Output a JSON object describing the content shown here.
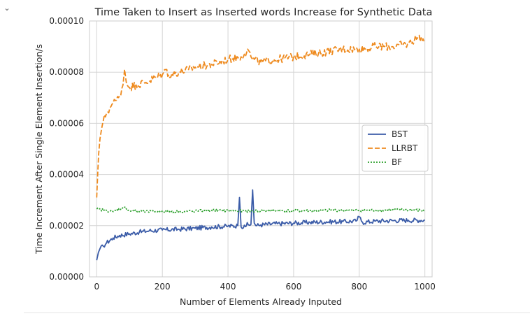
{
  "ui": {
    "collapse_icon": "chevron-down-icon"
  },
  "chart_data": {
    "type": "line",
    "title": "Time Taken to Insert as Inserted words Increase for Synthetic Data",
    "xlabel": "Number of Elements Already Inputed",
    "ylabel": "Time Increment After Single Element Insertion/s",
    "xlim": [
      -22,
      1022
    ],
    "ylim": [
      0,
      0.0001
    ],
    "xticks": [
      0,
      200,
      400,
      600,
      800,
      1000
    ],
    "xtick_labels": [
      "0",
      "200",
      "400",
      "600",
      "800",
      "1000"
    ],
    "yticks": [
      0,
      2e-05,
      4e-05,
      6e-05,
      8e-05,
      0.0001
    ],
    "ytick_labels": [
      "0.00000",
      "0.00002",
      "0.00004",
      "0.00006",
      "0.00008",
      "0.00010"
    ],
    "grid": true,
    "legend_position": "center-right",
    "series": [
      {
        "name": "BST",
        "color": "#3b5ca8",
        "dash": "solid",
        "x": [
          0,
          5,
          10,
          20,
          30,
          50,
          70,
          100,
          130,
          160,
          200,
          250,
          300,
          350,
          400,
          430,
          435,
          440,
          450,
          470,
          475,
          480,
          485,
          500,
          550,
          600,
          650,
          700,
          750,
          790,
          800,
          810,
          850,
          900,
          950,
          1000
        ],
        "y": [
          6.5e-06,
          9.5e-06,
          1.1e-05,
          1.2e-05,
          1.33e-05,
          1.52e-05,
          1.62e-05,
          1.68e-05,
          1.75e-05,
          1.8e-05,
          1.83e-05,
          1.86e-05,
          1.9e-05,
          1.95e-05,
          1.98e-05,
          2e-05,
          3.1e-05,
          1.95e-05,
          2.02e-05,
          2.05e-05,
          3.4e-05,
          2.1e-05,
          2e-05,
          2.03e-05,
          2.08e-05,
          2.1e-05,
          2.13e-05,
          2.15e-05,
          2.16e-05,
          2.18e-05,
          2.35e-05,
          2.13e-05,
          2.18e-05,
          2.2e-05,
          2.21e-05,
          2.22e-05
        ]
      },
      {
        "name": "LLRBT",
        "color": "#ee8a1e",
        "dash": "dashed",
        "x": [
          0,
          3,
          6,
          10,
          15,
          20,
          30,
          40,
          50,
          60,
          70,
          80,
          85,
          90,
          100,
          120,
          150,
          180,
          200,
          210,
          220,
          250,
          280,
          300,
          350,
          400,
          440,
          450,
          460,
          470,
          480,
          500,
          550,
          600,
          650,
          700,
          750,
          800,
          850,
          900,
          950,
          980,
          1000
        ],
        "y": [
          3.1e-05,
          4e-05,
          4.8e-05,
          5.4e-05,
          5.8e-05,
          6.1e-05,
          6.4e-05,
          6.6e-05,
          6.8e-05,
          6.9e-05,
          7.1e-05,
          7.5e-05,
          8.1e-05,
          7.6e-05,
          7.4e-05,
          7.5e-05,
          7.6e-05,
          7.8e-05,
          7.9e-05,
          8.1e-05,
          7.9e-05,
          8e-05,
          8.1e-05,
          8.2e-05,
          8.3e-05,
          8.5e-05,
          8.6e-05,
          8.7e-05,
          8.9e-05,
          8.6e-05,
          8.5e-05,
          8.4e-05,
          8.5e-05,
          8.6e-05,
          8.7e-05,
          8.8e-05,
          8.9e-05,
          8.9e-05,
          9e-05,
          9e-05,
          9.1e-05,
          9.4e-05,
          9.2e-05
        ]
      },
      {
        "name": "BF",
        "color": "#2ca02c",
        "dash": "dotted",
        "x": [
          0,
          50,
          85,
          100,
          150,
          200,
          250,
          300,
          350,
          400,
          450,
          500,
          550,
          600,
          650,
          700,
          750,
          800,
          850,
          900,
          950,
          1000
        ],
        "y": [
          2.65e-05,
          2.55e-05,
          2.72e-05,
          2.58e-05,
          2.55e-05,
          2.56e-05,
          2.55e-05,
          2.57e-05,
          2.6e-05,
          2.58e-05,
          2.57e-05,
          2.58e-05,
          2.59e-05,
          2.58e-05,
          2.59e-05,
          2.6e-05,
          2.6e-05,
          2.6e-05,
          2.6e-05,
          2.61e-05,
          2.62e-05,
          2.59e-05
        ]
      }
    ]
  }
}
